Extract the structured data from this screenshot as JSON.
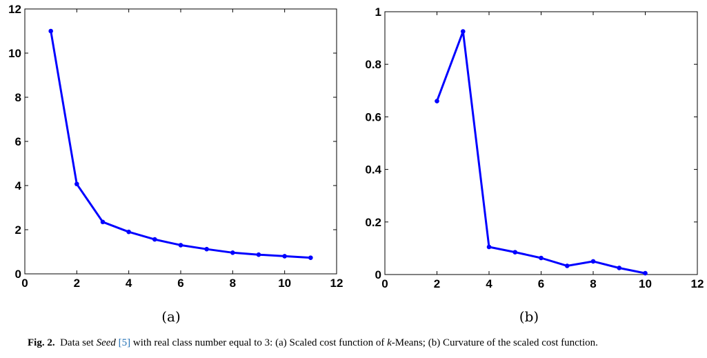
{
  "chart_data": [
    {
      "type": "line",
      "subtitle": "(a)",
      "xlim": [
        0,
        12
      ],
      "ylim": [
        0,
        12
      ],
      "xticks": [
        "0",
        "2",
        "4",
        "6",
        "8",
        "10",
        "12"
      ],
      "yticks": [
        "0",
        "2",
        "4",
        "6",
        "8",
        "10",
        "12"
      ],
      "grid": false,
      "color": "#0000ff",
      "x": [
        1,
        2,
        3,
        4,
        5,
        6,
        7,
        8,
        9,
        10,
        11
      ],
      "y": [
        11.0,
        4.07,
        2.35,
        1.9,
        1.56,
        1.3,
        1.12,
        0.96,
        0.87,
        0.8,
        0.73
      ]
    },
    {
      "type": "line",
      "subtitle": "(b)",
      "xlim": [
        0,
        12
      ],
      "ylim": [
        0,
        1
      ],
      "xticks": [
        "0",
        "2",
        "4",
        "6",
        "8",
        "10",
        "12"
      ],
      "yticks": [
        "0",
        "0.2",
        "0.4",
        "0.6",
        "0.8",
        "1"
      ],
      "grid": false,
      "color": "#0000ff",
      "x": [
        2,
        3,
        4,
        5,
        6,
        7,
        8,
        9,
        10
      ],
      "y": [
        0.66,
        0.925,
        0.105,
        0.085,
        0.063,
        0.033,
        0.05,
        0.025,
        0.005
      ]
    }
  ],
  "caption": {
    "label": "Fig. 2.",
    "text_1": "Data set ",
    "dataset": "Seed",
    "ref": "[5]",
    "text_2": " with real class number equal to 3: (a) Scaled cost function of ",
    "k": "k",
    "text_3": "-Means; (b) Curvature of the scaled cost function."
  }
}
